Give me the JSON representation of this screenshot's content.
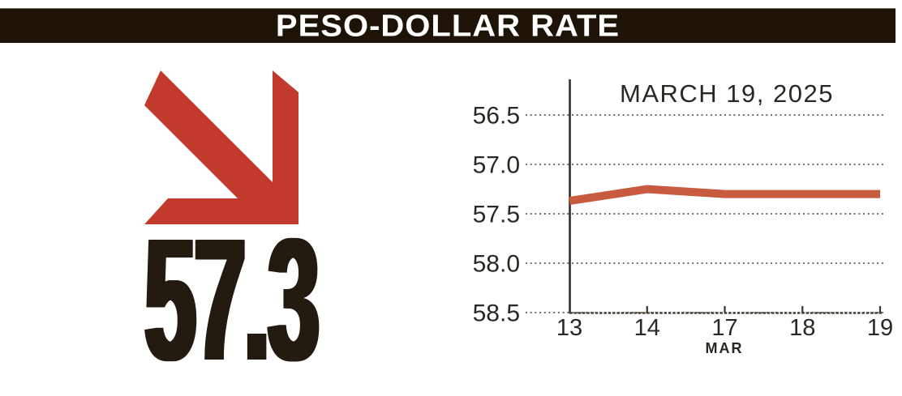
{
  "header": {
    "title": "PESO-DOLLAR RATE",
    "bg_color": "#1d1407",
    "text_color": "#ffffff"
  },
  "indicator": {
    "value": "57.3",
    "direction": "down",
    "arrow_color": "#c13a2b",
    "value_color": "#231a10"
  },
  "chart_data": {
    "type": "line",
    "title": "MARCH 19, 2025",
    "xlabel": "MAR",
    "ylabel": "",
    "categories": [
      "13",
      "14",
      "17",
      "18",
      "19"
    ],
    "series": [
      {
        "name": "peso-dollar-rate",
        "values": [
          57.37,
          57.25,
          57.3,
          57.3,
          57.3
        ],
        "color": "#c85b3f"
      }
    ],
    "y_ticks": [
      56.5,
      57.0,
      57.5,
      58.0,
      58.5
    ],
    "ylim": [
      56.5,
      58.5
    ],
    "y_axis_inverted": true,
    "grid": "horizontal-dotted",
    "legend": "none",
    "colors": {
      "label": "#2b2722",
      "grid_dots": "#6e6963",
      "y_axis": "#332d26",
      "x_axis": "#4a443c",
      "tick": "#3a342d"
    }
  }
}
